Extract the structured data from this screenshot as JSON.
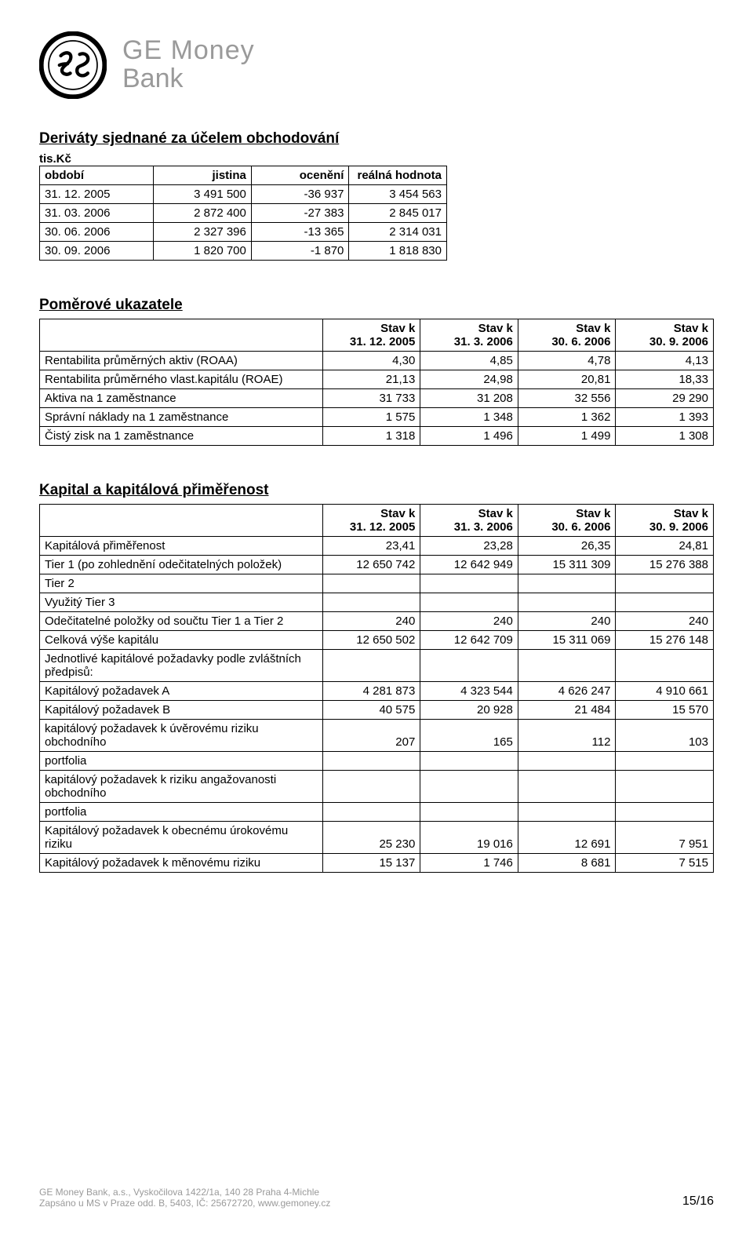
{
  "brand": {
    "top": "GE Money",
    "bottom": "Bank"
  },
  "footer": {
    "line1": "GE Money Bank, a.s., Vyskočilova 1422/1a, 140 28 Praha 4-Michle",
    "line2": "Zapsáno u MS v Praze odd. B, 5403, IČ: 25672720, www.gemoney.cz",
    "page": "15/16"
  },
  "section1": {
    "title": "Deriváty sjednané za účelem obchodování",
    "unit": "tis.Kč",
    "headers": {
      "c0": "období",
      "c1": "jistina",
      "c2": "ocenění",
      "c3": "reálná hodnota"
    },
    "rows": [
      {
        "d": "31. 12. 2005",
        "a": "3 491 500",
        "b": "-36 937",
        "c": "3 454 563"
      },
      {
        "d": "31. 03. 2006",
        "a": "2 872 400",
        "b": "-27 383",
        "c": "2 845 017"
      },
      {
        "d": "30. 06. 2006",
        "a": "2 327 396",
        "b": "-13 365",
        "c": "2 314 031"
      },
      {
        "d": "30. 09. 2006",
        "a": "1 820 700",
        "b": "-1 870",
        "c": "1 818 830"
      }
    ]
  },
  "section2": {
    "title": "Poměrové ukazatele",
    "heads": {
      "h1a": "Stav k",
      "h1b": "31. 12. 2005",
      "h2a": "Stav k",
      "h2b": "31. 3. 2006",
      "h3a": "Stav k",
      "h3b": "30. 6. 2006",
      "h4a": "Stav k",
      "h4b": "30. 9. 2006"
    },
    "rows": [
      {
        "l": "Rentabilita průměrných aktiv (ROAA)",
        "v": [
          "4,30",
          "4,85",
          "4,78",
          "4,13"
        ]
      },
      {
        "l": "Rentabilita průměrného vlast.kapitálu (ROAE)",
        "v": [
          "21,13",
          "24,98",
          "20,81",
          "18,33"
        ]
      },
      {
        "l": "Aktiva na  1 zaměstnance",
        "v": [
          "31 733",
          "31 208",
          "32 556",
          "29 290"
        ]
      },
      {
        "l": "Správní náklady na 1 zaměstnance",
        "v": [
          "1 575",
          "1 348",
          "1 362",
          "1 393"
        ]
      },
      {
        "l": "Čistý zisk na 1 zaměstnance",
        "v": [
          "1 318",
          "1 496",
          "1 499",
          "1 308"
        ]
      }
    ]
  },
  "section3": {
    "title": "Kapital a kapitálová přiměřenost",
    "heads": {
      "h1a": "Stav k",
      "h1b": "31. 12. 2005",
      "h2a": "Stav k",
      "h2b": "31. 3. 2006",
      "h3a": "Stav k",
      "h3b": "30. 6. 2006",
      "h4a": "Stav k",
      "h4b": "30. 9. 2006"
    },
    "rows": [
      {
        "l": "Kapitálová přiměřenost",
        "v": [
          "23,41",
          "23,28",
          "26,35",
          "24,81"
        ]
      },
      {
        "l": "Tier 1 (po zohlednění odečitatelných položek)",
        "v": [
          "12 650 742",
          "12 642 949",
          "15 311 309",
          "15 276 388"
        ]
      },
      {
        "l": "Tier 2",
        "v": [
          "",
          "",
          "",
          ""
        ]
      },
      {
        "l": "Využitý Tier 3",
        "v": [
          "",
          "",
          "",
          ""
        ]
      },
      {
        "l": "Odečitatelné položky od součtu Tier 1 a Tier 2",
        "v": [
          "240",
          "240",
          "240",
          "240"
        ]
      },
      {
        "l": "Celková výše kapitálu",
        "v": [
          "12 650 502",
          "12 642 709",
          "15 311 069",
          "15 276 148"
        ]
      },
      {
        "l": "Jednotlivé kapitálové požadavky podle zvláštních předpisů:",
        "v": [
          "",
          "",
          "",
          ""
        ]
      },
      {
        "l": "Kapitálový požadavek A",
        "v": [
          "4 281 873",
          "4 323 544",
          "4 626 247",
          "4 910 661"
        ]
      },
      {
        "l": "Kapitálový požadavek B",
        "v": [
          "40 575",
          "20 928",
          "21 484",
          "15 570"
        ]
      },
      {
        "l": "kapitálový požadavek k úvěrovému riziku obchodního",
        "v": [
          "207",
          "165",
          "112",
          "103"
        ]
      },
      {
        "l": "portfolia",
        "v": [
          "",
          "",
          "",
          ""
        ]
      },
      {
        "l": "kapitálový požadavek k riziku angažovanosti obchodního",
        "v": [
          "",
          "",
          "",
          ""
        ]
      },
      {
        "l": "portfolia",
        "v": [
          "",
          "",
          "",
          ""
        ]
      },
      {
        "l": "Kapitálový požadavek k obecnému úrokovému riziku",
        "v": [
          "25 230",
          "19 016",
          "12 691",
          "7 951"
        ]
      },
      {
        "l": "Kapitálový požadavek k měnovému riziku",
        "v": [
          "15 137",
          "1 746",
          "8 681",
          "7 515"
        ]
      }
    ]
  }
}
